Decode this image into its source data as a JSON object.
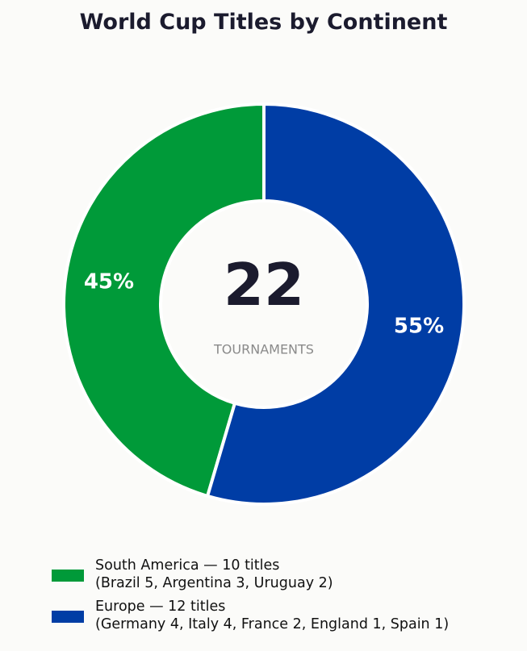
{
  "chart_data": {
    "type": "pie",
    "title": "World Cup Titles by Continent",
    "donut": true,
    "center": {
      "value": "22",
      "label": "TOURNAMENTS"
    },
    "start_angle_deg": 90,
    "direction": "counterclockwise",
    "slices": [
      {
        "name": "South America",
        "value": 10,
        "percent_label": "45%",
        "color": "#009a39",
        "legend_line1": "South America — 10 titles",
        "legend_line2": "(Brazil 5, Argentina 3, Uruguay 2)"
      },
      {
        "name": "Europe",
        "value": 12,
        "percent_label": "55%",
        "color": "#003da5",
        "legend_line1": "Europe — 12 titles",
        "legend_line2": "(Germany 4, Italy 4, France 2, England 1, Spain 1)"
      }
    ],
    "legend_placement": "bottom-left",
    "colors": {
      "background": "#fbfbf9",
      "title": "#1b1b2e",
      "center_value": "#1b1b2e",
      "center_label": "#8a8a8a",
      "slice_label": "#ffffff",
      "separator": "#ffffff"
    }
  }
}
